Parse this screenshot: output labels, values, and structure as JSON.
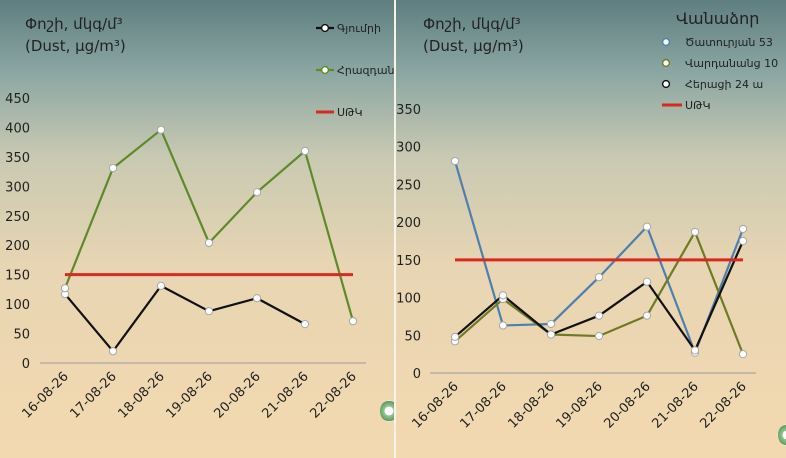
{
  "chart_data": [
    {
      "type": "line",
      "title": "Փոշի, մկգ/մ³",
      "subtitle": "(Dust, μg/m³)",
      "categories": [
        "16-08-26",
        "17-08-26",
        "18-08-26",
        "19-08-26",
        "20-08-26",
        "21-08-26",
        "22-08-26"
      ],
      "ylim": [
        0,
        450
      ],
      "yticks": [
        0,
        50,
        100,
        150,
        200,
        250,
        300,
        350,
        400,
        450
      ],
      "grid": false,
      "legend_position": "top-right",
      "series": [
        {
          "name": "Գյումրի",
          "color": "#111111",
          "values": [
            117,
            20,
            131,
            88,
            110,
            66,
            null
          ]
        },
        {
          "name": "Հրազդան",
          "color": "#5f8a2c",
          "values": [
            127,
            331,
            396,
            204,
            290,
            360,
            71
          ]
        },
        {
          "name": "ՍԹԿ",
          "color": "#d62a1f",
          "values": [
            150,
            150,
            150,
            150,
            150,
            150,
            150
          ],
          "markers": false
        }
      ]
    },
    {
      "type": "line",
      "title": "Փոշի, մկգ/մ³",
      "subtitle": "(Dust, μg/m³)",
      "heading": "Վանաձոր",
      "categories": [
        "16-08-26",
        "17-08-26",
        "18-08-26",
        "19-08-26",
        "20-08-26",
        "21-08-26",
        "22-08-26"
      ],
      "ylim": [
        0,
        350
      ],
      "yticks": [
        0,
        50,
        100,
        150,
        200,
        250,
        300,
        350
      ],
      "grid": false,
      "legend_position": "top-right",
      "series": [
        {
          "name": "Ծատուրյան 53",
          "color": "#4f7fae",
          "values": [
            281,
            63,
            65,
            127,
            194,
            27,
            191
          ]
        },
        {
          "name": "Վարդանանց 10",
          "color": "#6f7a24",
          "values": [
            42,
            98,
            51,
            49,
            76,
            187,
            25
          ]
        },
        {
          "name": "Հերացի 24 ա",
          "color": "#111111",
          "values": [
            48,
            103,
            51,
            76,
            121,
            30,
            175
          ]
        },
        {
          "name": "ՍԹԿ",
          "color": "#d62a1f",
          "values": [
            150,
            150,
            150,
            150,
            150,
            150,
            150
          ],
          "markers": false
        }
      ]
    }
  ]
}
